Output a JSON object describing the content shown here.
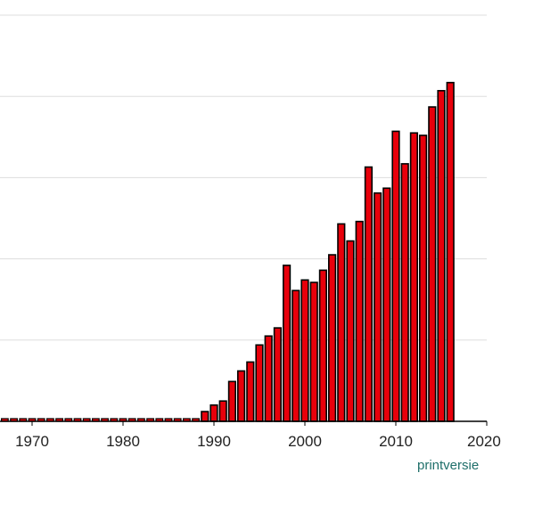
{
  "chart_data": {
    "type": "bar",
    "title": "",
    "xlabel": "",
    "ylabel": "",
    "xlim": [
      1966,
      2020
    ],
    "ylim": [
      0,
      500
    ],
    "grid": true,
    "xticks": [
      1970,
      1980,
      1990,
      2000,
      2010,
      2020
    ],
    "xtick_labels": [
      "1970",
      "1980",
      "1990",
      "2000",
      "2010",
      "2020"
    ],
    "yticks": [
      100,
      200,
      300,
      400,
      500
    ],
    "x": [
      1989,
      1990,
      1991,
      1992,
      1993,
      1994,
      1995,
      1996,
      1997,
      1998,
      1999,
      2000,
      2001,
      2002,
      2003,
      2004,
      2005,
      2006,
      2007,
      2008,
      2009,
      2010,
      2011,
      2012,
      2013,
      2014,
      2015,
      2016,
      2017
    ],
    "values": [
      12,
      20,
      25,
      49,
      62,
      73,
      94,
      105,
      115,
      192,
      161,
      174,
      171,
      186,
      205,
      243,
      222,
      246,
      313,
      281,
      287,
      357,
      317,
      355,
      352,
      387,
      407,
      417,
      0
    ],
    "baseline_years_with_zero": [
      1966,
      1967,
      1968,
      1969,
      1970,
      1971,
      1972,
      1973,
      1974,
      1975,
      1976,
      1977,
      1978,
      1979,
      1980,
      1981,
      1982,
      1983,
      1984,
      1985,
      1986,
      1987,
      1988
    ],
    "bar_color": "#e8000b",
    "bar_stroke": "#000000"
  },
  "links": {
    "print_label": "printversie"
  },
  "colors": {
    "grid": "#dddddd",
    "axis": "#000000",
    "link": "#1f6f6a"
  }
}
